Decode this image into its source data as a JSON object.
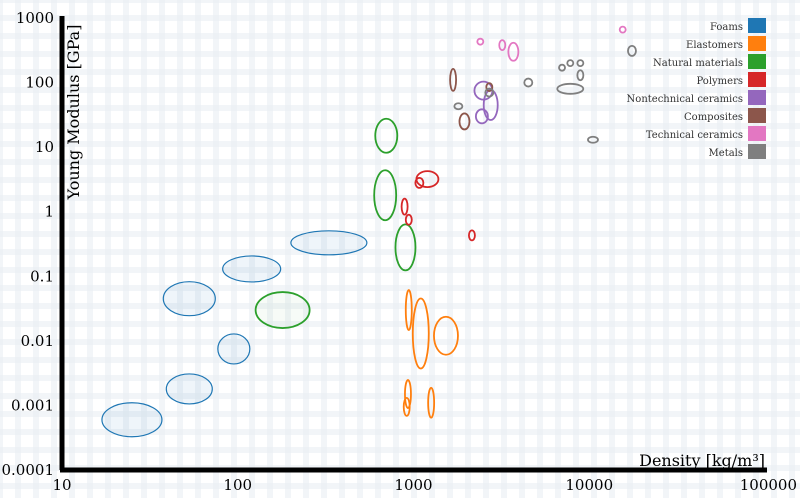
{
  "chart_data": {
    "type": "scatter",
    "xlabel": "Density [kg/m³]",
    "ylabel": "Young Modulus [GPa]",
    "x_scale": "log",
    "y_scale": "log",
    "xlim": [
      10,
      100000
    ],
    "ylim": [
      0.0001,
      1000
    ],
    "x_ticks": [
      "10",
      "100",
      "1000",
      "10000",
      "100000"
    ],
    "y_ticks": [
      "1000",
      "100",
      "10",
      "1",
      "0.1",
      "0.01",
      "0.001",
      "0.0001"
    ],
    "legend_position": "top-right",
    "series": [
      {
        "name": "Foams",
        "color": "#1f77b4",
        "ellipses": [
          {
            "x": 25,
            "y": 0.0006
          },
          {
            "x": 53,
            "y": 0.0018
          },
          {
            "x": 95,
            "y": 0.0075
          },
          {
            "x": 53,
            "y": 0.045
          },
          {
            "x": 120,
            "y": 0.13
          },
          {
            "x": 330,
            "y": 0.33
          }
        ]
      },
      {
        "name": "Elastomers",
        "color": "#ff7f0e",
        "ellipses": [
          {
            "x": 1100,
            "y": 0.013
          },
          {
            "x": 1530,
            "y": 0.012
          },
          {
            "x": 940,
            "y": 0.03
          },
          {
            "x": 930,
            "y": 0.0015
          },
          {
            "x": 1260,
            "y": 0.0011
          },
          {
            "x": 915,
            "y": 0.00095
          }
        ]
      },
      {
        "name": "Natural materials",
        "color": "#2ca02c",
        "ellipses": [
          {
            "x": 180,
            "y": 0.03
          },
          {
            "x": 900,
            "y": 0.28
          },
          {
            "x": 690,
            "y": 1.8
          },
          {
            "x": 700,
            "y": 15
          }
        ]
      },
      {
        "name": "Polymers",
        "color": "#d62728",
        "ellipses": [
          {
            "x": 1200,
            "y": 3.2
          },
          {
            "x": 1080,
            "y": 2.8
          },
          {
            "x": 890,
            "y": 1.2
          },
          {
            "x": 940,
            "y": 0.75
          },
          {
            "x": 2150,
            "y": 0.43
          }
        ]
      },
      {
        "name": "Nontechnical ceramics",
        "color": "#9467bd",
        "ellipses": [
          {
            "x": 2500,
            "y": 75
          },
          {
            "x": 2750,
            "y": 45
          },
          {
            "x": 2450,
            "y": 30
          }
        ]
      },
      {
        "name": "Composites",
        "color": "#8c564b",
        "ellipses": [
          {
            "x": 1680,
            "y": 110
          },
          {
            "x": 1950,
            "y": 25
          },
          {
            "x": 2700,
            "y": 85
          }
        ]
      },
      {
        "name": "Technical ceramics",
        "color": "#e377c2",
        "ellipses": [
          {
            "x": 3200,
            "y": 380
          },
          {
            "x": 3700,
            "y": 300
          },
          {
            "x": 2400,
            "y": 430
          },
          {
            "x": 15500,
            "y": 660
          }
        ]
      },
      {
        "name": "Metals",
        "color": "#7f7f7f",
        "ellipses": [
          {
            "x": 7800,
            "y": 80
          },
          {
            "x": 2700,
            "y": 70
          },
          {
            "x": 4500,
            "y": 100
          },
          {
            "x": 7000,
            "y": 170
          },
          {
            "x": 7800,
            "y": 200
          },
          {
            "x": 8900,
            "y": 200
          },
          {
            "x": 8900,
            "y": 130
          },
          {
            "x": 17500,
            "y": 310
          },
          {
            "x": 1800,
            "y": 43
          },
          {
            "x": 10500,
            "y": 13
          }
        ]
      }
    ]
  }
}
